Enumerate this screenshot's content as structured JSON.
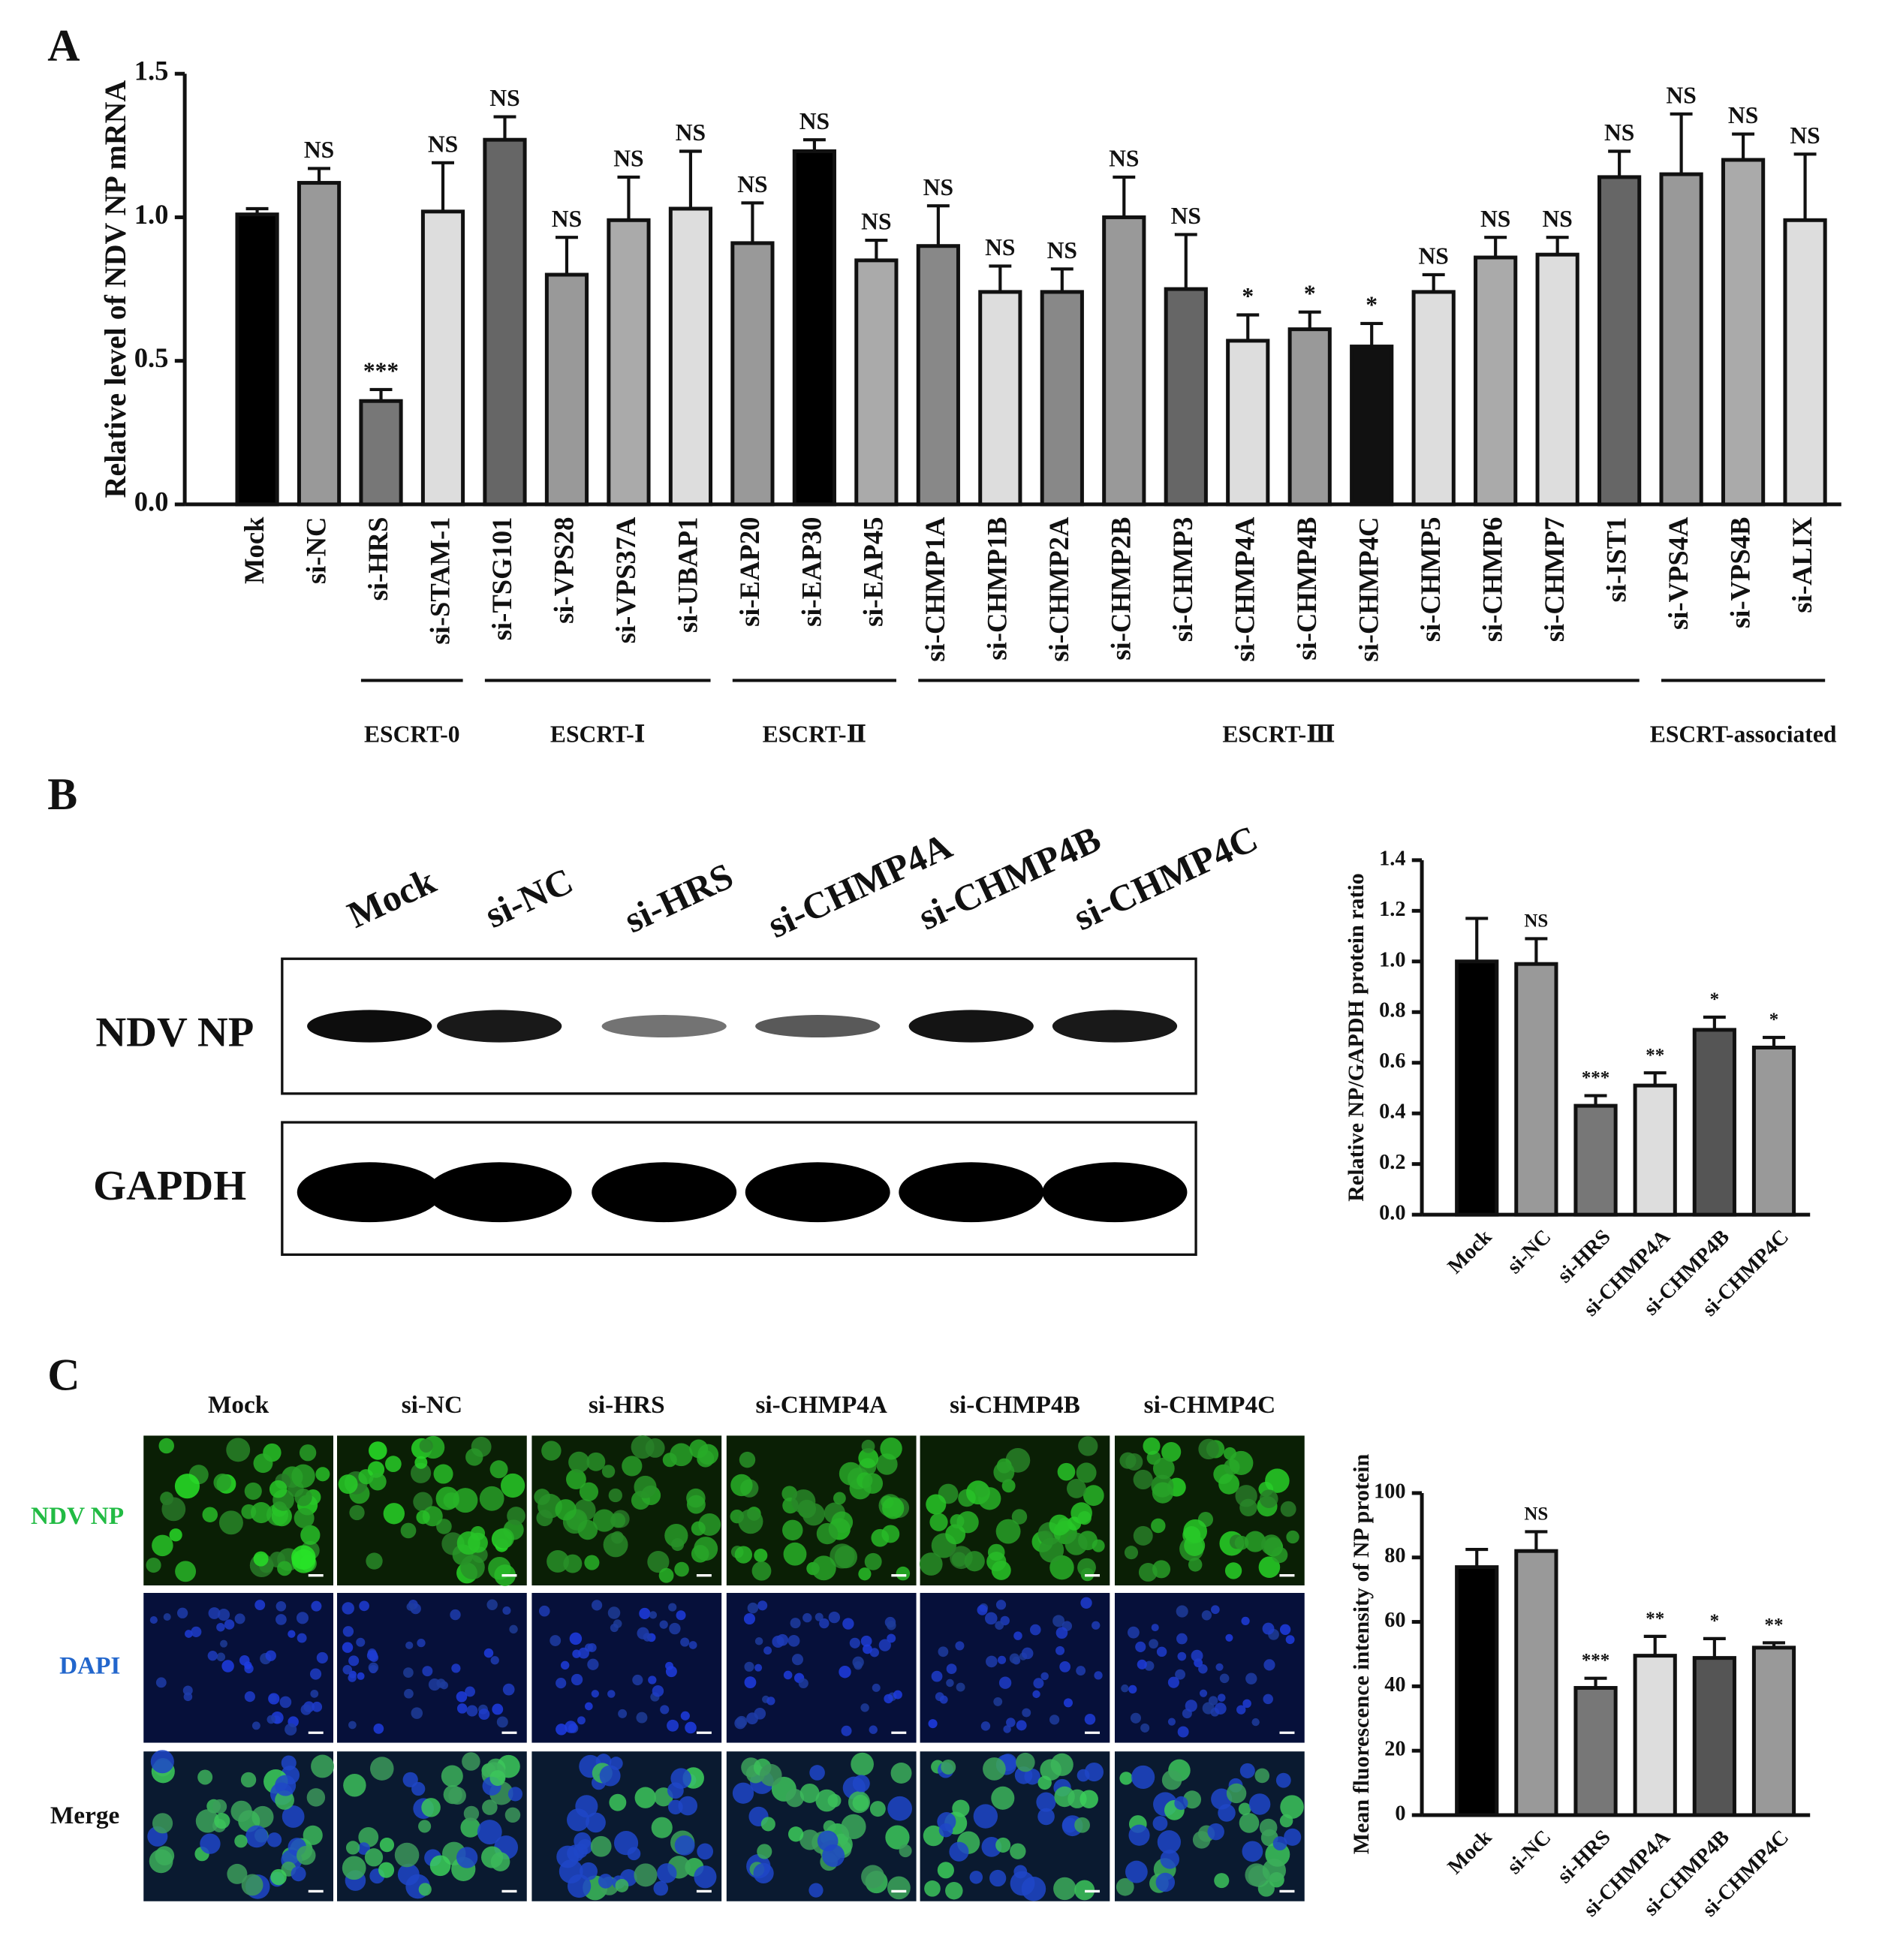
{
  "panel_labels": [
    "A",
    "B",
    "C"
  ],
  "chart_data": [
    {
      "type": "bar",
      "y_label": "Relative level of NDV NP mRNA",
      "categories": [
        "Mock",
        "si-NC",
        "si-HRS",
        "si-STAM-1",
        "si-TSG101",
        "si-VPS28",
        "si-VPS37A",
        "si-UBAP1",
        "si-EAP20",
        "si-EAP30",
        "si-EAP45",
        "si-CHMP1A",
        "si-CHMP1B",
        "si-CHMP2A",
        "si-CHMP2B",
        "si-CHMP3",
        "si-CHMP4A",
        "si-CHMP4B",
        "si-CHMP4C",
        "si-CHMP5",
        "si-CHMP6",
        "si-CHMP7",
        "si-IST1",
        "si-VPS4A",
        "si-VPS4B",
        "si-ALIX"
      ],
      "values": [
        1.01,
        1.12,
        0.36,
        1.02,
        1.27,
        0.8,
        0.99,
        1.03,
        0.91,
        1.23,
        0.85,
        0.9,
        0.74,
        0.74,
        1.0,
        0.75,
        0.57,
        0.61,
        0.55,
        0.74,
        0.86,
        0.87,
        1.14,
        1.15,
        1.2,
        0.99
      ],
      "errors": [
        0.02,
        0.05,
        0.04,
        0.17,
        0.08,
        0.13,
        0.15,
        0.2,
        0.14,
        0.04,
        0.07,
        0.14,
        0.09,
        0.08,
        0.14,
        0.19,
        0.09,
        0.06,
        0.08,
        0.06,
        0.07,
        0.06,
        0.09,
        0.21,
        0.09,
        0.23
      ],
      "annotations": [
        null,
        "NS",
        "***",
        "NS",
        "NS",
        "NS",
        "NS",
        "NS",
        "NS",
        "NS",
        "NS",
        "NS",
        "NS",
        "NS",
        "NS",
        "NS",
        "*",
        "*",
        "*",
        "NS",
        "NS",
        "NS",
        "NS",
        "NS",
        "NS",
        "NS"
      ],
      "colors": [
        "#000000",
        "#999999",
        "#777777",
        "#dddddd",
        "#666666",
        "#999999",
        "#aaaaaa",
        "#dddddd",
        "#999999",
        "#000000",
        "#aaaaaa",
        "#888888",
        "#dddddd",
        "#888888",
        "#999999",
        "#666666",
        "#dddddd",
        "#999999",
        "#111111",
        "#dddddd",
        "#aaaaaa",
        "#dddddd",
        "#666666",
        "#999999",
        "#aaaaaa",
        "#dddddd"
      ],
      "group_labels": [
        "ESCRT-0",
        "ESCRT-Ⅰ",
        "ESCRT-Ⅱ",
        "ESCRT-Ⅲ",
        "ESCRT-associated"
      ],
      "ylim": [
        0,
        1.5
      ],
      "yticks": [
        {
          "value": 0,
          "label": "0.0"
        },
        0.5,
        {
          "value": 1,
          "label": "1.0"
        },
        1.5
      ]
    },
    {
      "type": "bar",
      "y_label": "Relative NP/GAPDH protein ratio",
      "categories": [
        "Mock",
        "si-NC",
        "si-HRS",
        "si-CHMP4A",
        "si-CHMP4B",
        "si-CHMP4C"
      ],
      "values": [
        1.0,
        0.99,
        0.43,
        0.51,
        0.73,
        0.66
      ],
      "errors": [
        0.17,
        0.1,
        0.04,
        0.05,
        0.05,
        0.04
      ],
      "annotations": [
        null,
        "NS",
        "***",
        "**",
        "*",
        "*"
      ],
      "colors": [
        "#000000",
        "#999999",
        "#777777",
        "#dddddd",
        "#555555",
        "#999999"
      ],
      "ylim": [
        0,
        1.4
      ],
      "yticks": [
        {
          "value": 0,
          "label": "0.0"
        },
        0.2,
        0.4,
        0.6,
        0.8,
        {
          "value": 1,
          "label": "1.0"
        },
        1.2,
        1.4
      ]
    },
    {
      "type": "bar",
      "y_label": "Mean fluorescence intensity of NP protein",
      "categories": [
        "Mock",
        "si-NC",
        "si-HRS",
        "si-CHMP4A",
        "si-CHMP4B",
        "si-CHMP4C"
      ],
      "values": [
        77,
        82,
        39.5,
        49.5,
        48.8,
        52
      ],
      "errors": [
        5.5,
        6,
        3,
        6,
        6,
        1.5
      ],
      "annotations": [
        null,
        "NS",
        "***",
        "**",
        "*",
        "**"
      ],
      "colors": [
        "#000000",
        "#999999",
        "#777777",
        "#dddddd",
        "#555555",
        "#999999"
      ],
      "ylim": [
        0,
        100
      ],
      "yticks": [
        0,
        20,
        40,
        60,
        80,
        100
      ]
    }
  ],
  "western_blot": {
    "lanes": [
      "Mock",
      "si-NC",
      "si-HRS",
      "si-CHMP4A",
      "si-CHMP4B",
      "si-CHMP4C"
    ],
    "rows": [
      "NDV NP",
      "GAPDH"
    ]
  },
  "microscopy": {
    "columns": [
      "Mock",
      "si-NC",
      "si-HRS",
      "si-CHMP4A",
      "si-CHMP4B",
      "si-CHMP4C"
    ],
    "rows": [
      "NDV NP",
      "DAPI",
      "Merge"
    ]
  }
}
